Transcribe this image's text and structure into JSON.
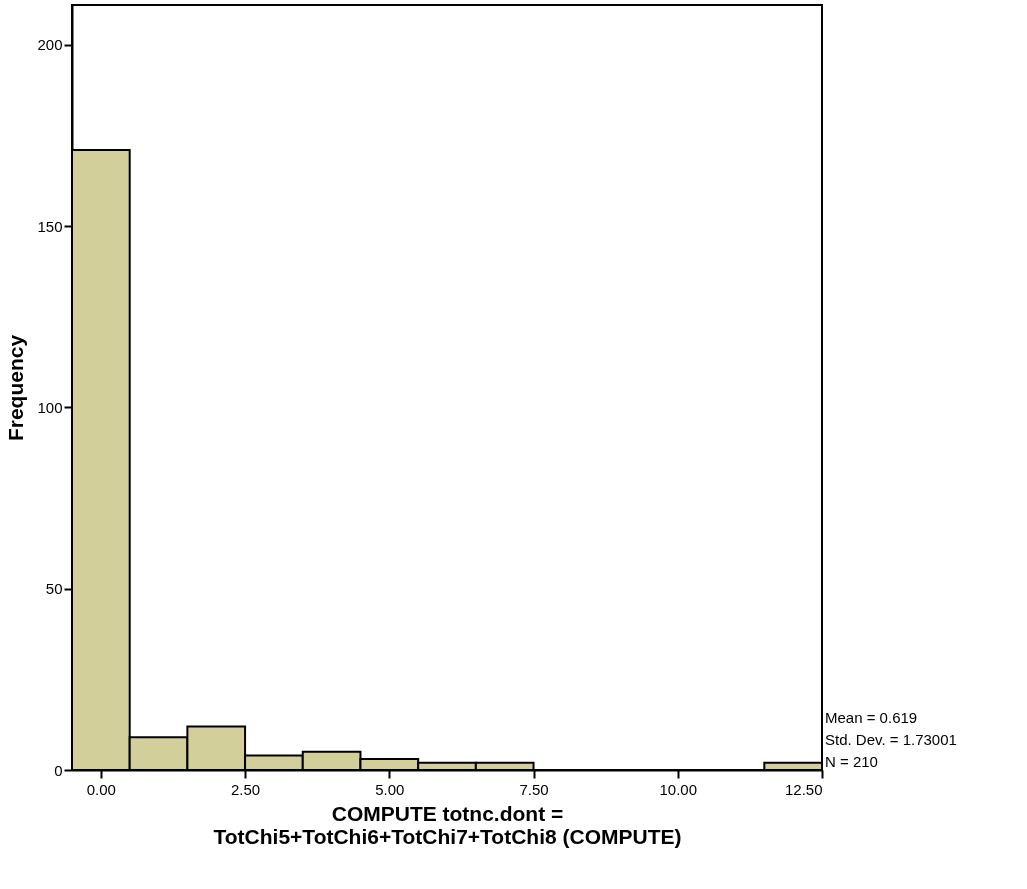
{
  "chart_data": {
    "type": "histogram",
    "xlabel": "COMPUTE  totnc.dont =\nTotChi5+TotChi6+TotChi7+TotChi8 (COMPUTE)",
    "ylabel": "Frequency",
    "bins": [
      -0.5,
      0.5,
      1.5,
      2.5,
      3.5,
      4.5,
      5.5,
      6.5,
      7.5,
      8.5,
      9.5,
      10.5,
      11.5,
      12.5
    ],
    "values": [
      171,
      9,
      12,
      4,
      5,
      3,
      2,
      2,
      0,
      0,
      0,
      0,
      2
    ],
    "color": "#d3cf9b",
    "xlim": [
      -0.5,
      12.5
    ],
    "xticks": [
      {
        "value": 0,
        "label": "0.00"
      },
      {
        "value": 2.5,
        "label": "2.50"
      },
      {
        "value": 5,
        "label": "5.00"
      },
      {
        "value": 7.5,
        "label": "7.50"
      },
      {
        "value": 10,
        "label": "10.00"
      },
      {
        "value": 12.5,
        "label": "12.50"
      }
    ],
    "ylim": [
      0,
      211
    ],
    "yticks": [
      0,
      50,
      100,
      150,
      200
    ],
    "grid": false,
    "annotations": [
      "Mean = 0.619",
      "Std. Dev. = 1.73001",
      "N = 210"
    ]
  }
}
